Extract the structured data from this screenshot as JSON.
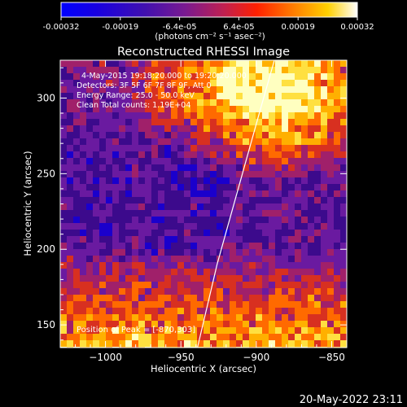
{
  "chart_data": {
    "type": "heatmap",
    "title": "Reconstructed RHESSI Image",
    "xlabel": "Heliocentric X (arcsec)",
    "ylabel": "Heliocentric Y (arcsec)",
    "xlim": [
      -1030,
      -840
    ],
    "ylim": [
      135,
      325
    ],
    "x_ticks": [
      -1000,
      -950,
      -900,
      -850
    ],
    "x_tick_labels": [
      "−1000",
      "−950",
      "−900",
      "−850"
    ],
    "y_ticks": [
      150,
      200,
      250,
      300
    ],
    "y_tick_labels": [
      "150",
      "200",
      "250",
      "300"
    ],
    "colorbar": {
      "range": [
        -0.00032,
        0.00032
      ],
      "tick_labels": [
        "-0.00032",
        "-0.00019",
        "-6.4e-05",
        "6.4e-05",
        "0.00019",
        "0.00032"
      ],
      "label": "(photons cm⁻² s⁻¹ asec⁻²)"
    },
    "annotations": [
      "4-May-2015 19:18:20.000 to 19:20:20.000",
      "Detectors: 3F 5F 6F 7F 8F 9F, Att 0",
      "Energy Range: 25.0 - 50.0 keV",
      "Clean     Total counts: 1.19E+04"
    ],
    "peak_label": "Position of Peak = [-870,303]",
    "peak": [
      -870,
      303
    ],
    "limb_arc": [
      [
        -939,
        135
      ],
      [
        -926,
        190
      ],
      [
        -912,
        240
      ],
      [
        -898,
        290
      ],
      [
        -888,
        325
      ]
    ],
    "grid": false,
    "colors": {
      "background": "#000000",
      "text": "#ffffff",
      "colormap": [
        "#0000ff",
        "#1a00cc",
        "#3c0a8c",
        "#6a1aa0",
        "#a0206a",
        "#d83020",
        "#ff6a00",
        "#ffb000",
        "#ffe040",
        "#ffffc0"
      ]
    }
  },
  "footer": {
    "date": "20-May-2022 23:11"
  }
}
